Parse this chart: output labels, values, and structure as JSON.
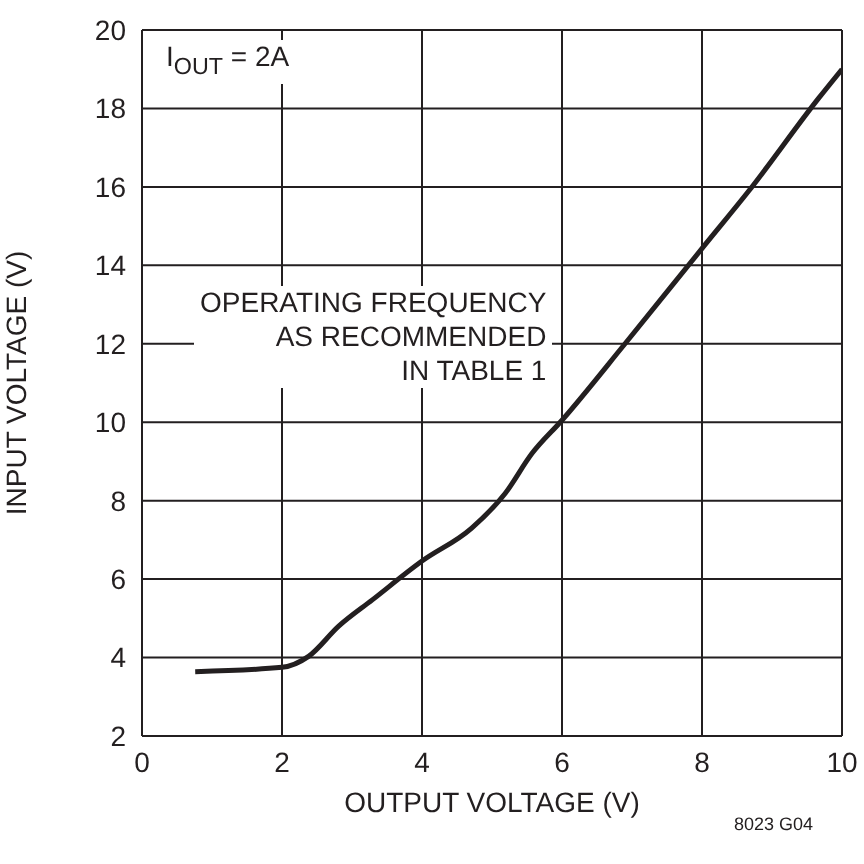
{
  "chart_data": {
    "type": "line",
    "xlabel": "OUTPUT VOLTAGE (V)",
    "ylabel": "INPUT VOLTAGE (V)",
    "x": [
      0.76,
      2.0,
      2.38,
      2.81,
      3.29,
      4.0,
      4.71,
      5.19,
      5.57,
      6.0,
      6.9,
      8.05,
      8.67,
      9.67,
      10
    ],
    "series": [
      {
        "color": "#231f20",
        "values": [
          3.64,
          3.75,
          4.03,
          4.8,
          5.47,
          6.46,
          7.3,
          8.19,
          9.2,
          10.05,
          12.0,
          14.54,
          15.9,
          18.27,
          19.0
        ]
      }
    ],
    "xlim": [
      0,
      10
    ],
    "xticks": [
      0,
      2,
      4,
      6,
      8,
      10
    ],
    "ylim": [
      2,
      20
    ],
    "yticks": [
      2,
      4,
      6,
      8,
      10,
      12,
      14,
      16,
      18,
      20
    ],
    "grid": true,
    "marker": "none",
    "line_style": "solid",
    "annotations": [
      "I$_{OUT}$ = 2A",
      "OPERATING FREQUENCY\nAS RECOMMENDED\nIN TABLE 1",
      "8023 G04"
    ]
  }
}
